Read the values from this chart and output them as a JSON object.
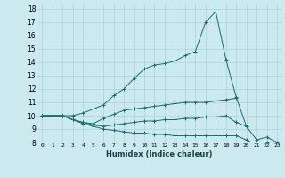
{
  "title": "",
  "xlabel": "Humidex (Indice chaleur)",
  "bg_color": "#cce9f0",
  "grid_color": "#a8d4de",
  "line_color": "#1a6b6b",
  "xlim": [
    -0.5,
    23.5
  ],
  "ylim": [
    8,
    18.4
  ],
  "xticks": [
    0,
    1,
    2,
    3,
    4,
    5,
    6,
    7,
    8,
    9,
    10,
    11,
    12,
    13,
    14,
    15,
    16,
    17,
    18,
    19,
    20,
    21,
    22,
    23
  ],
  "yticks": [
    8,
    9,
    10,
    11,
    12,
    13,
    14,
    15,
    16,
    17,
    18
  ],
  "series": [
    [
      10.0,
      10.0,
      10.0,
      10.0,
      10.2,
      10.5,
      10.8,
      11.5,
      12.0,
      12.8,
      13.5,
      13.8,
      13.9,
      14.1,
      14.5,
      14.8,
      17.0,
      17.8,
      14.2,
      11.4,
      9.2,
      null,
      null,
      null
    ],
    [
      10.0,
      10.0,
      10.0,
      9.7,
      9.5,
      9.4,
      9.8,
      10.1,
      10.4,
      10.5,
      10.6,
      10.7,
      10.8,
      10.9,
      11.0,
      11.0,
      11.0,
      11.1,
      11.2,
      11.3,
      null,
      null,
      null,
      null
    ],
    [
      10.0,
      10.0,
      10.0,
      9.7,
      9.5,
      9.3,
      9.2,
      9.3,
      9.4,
      9.5,
      9.6,
      9.6,
      9.7,
      9.7,
      9.8,
      9.8,
      9.9,
      9.9,
      10.0,
      9.5,
      9.2,
      8.2,
      8.4,
      8.0
    ],
    [
      10.0,
      10.0,
      10.0,
      9.7,
      9.4,
      9.2,
      9.0,
      8.9,
      8.8,
      8.7,
      8.7,
      8.6,
      8.6,
      8.5,
      8.5,
      8.5,
      8.5,
      8.5,
      8.5,
      8.5,
      8.2,
      7.8,
      8.0,
      7.8
    ]
  ]
}
